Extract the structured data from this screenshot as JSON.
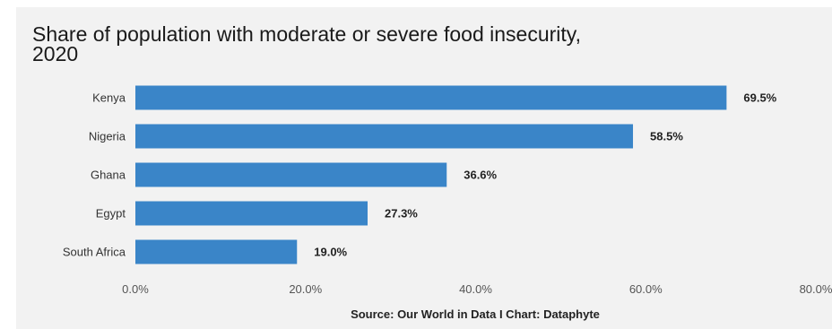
{
  "chart_data": {
    "type": "bar",
    "orientation": "horizontal",
    "title_lines": [
      "Share of population with moderate or severe food insecurity,",
      "2020"
    ],
    "categories": [
      "Kenya",
      "Nigeria",
      "Ghana",
      "Egypt",
      "South Africa"
    ],
    "values": [
      69.5,
      58.5,
      36.6,
      27.3,
      19.0
    ],
    "data_labels": [
      "69.5%",
      "58.5%",
      "36.6%",
      "27.3%",
      "19.0%"
    ],
    "x_ticks": [
      0,
      20,
      40,
      60,
      80
    ],
    "x_tick_labels": [
      "0.0%",
      "20.0%",
      "40.0%",
      "60.0%",
      "80.0%"
    ],
    "xlim": [
      0,
      80
    ],
    "bar_color": "#3a85c8",
    "background_color": "#f2f2f2",
    "grid": false,
    "source": "Source: Our World in Data I Chart: Dataphyte"
  }
}
